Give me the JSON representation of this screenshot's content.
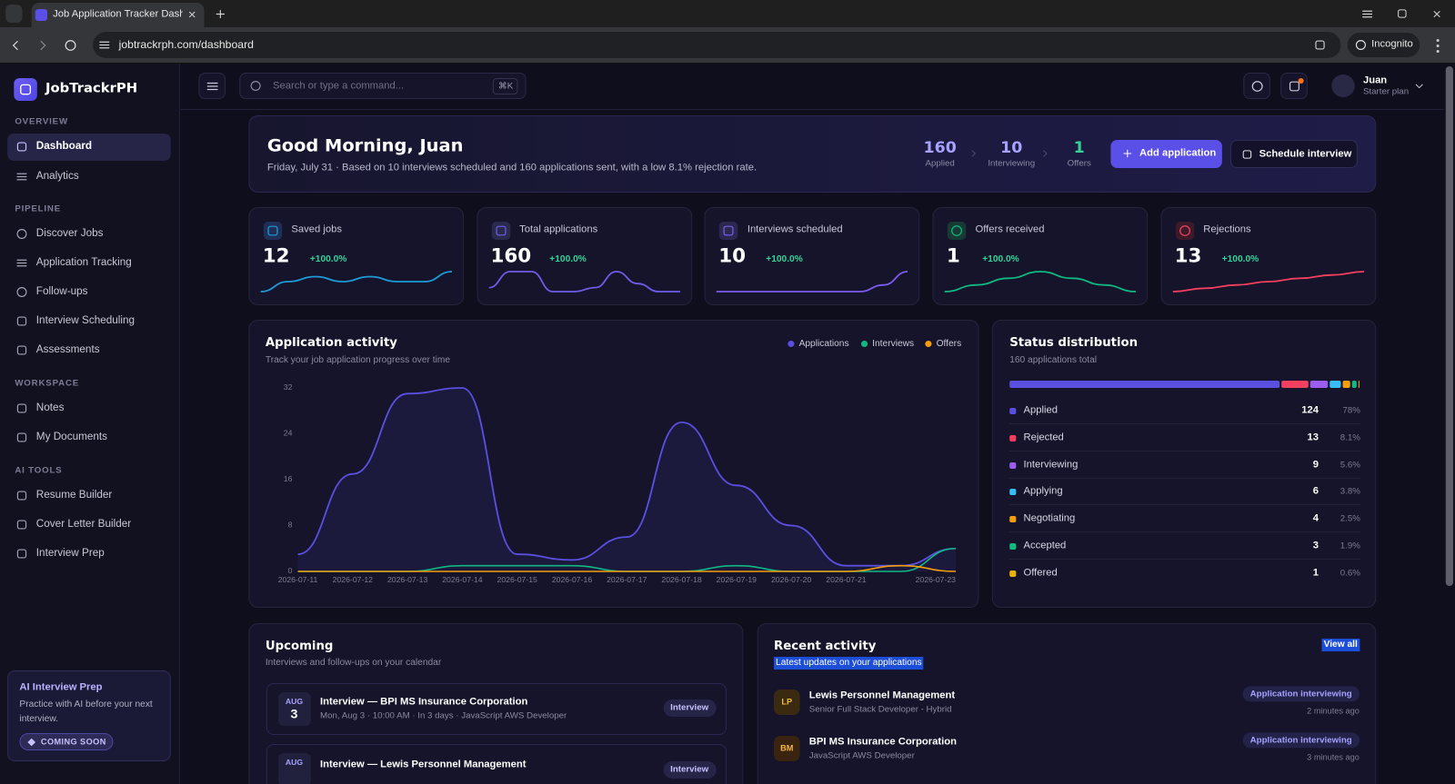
{
  "browser": {
    "tab_title": "Job Application Tracker Dashbo",
    "url": "jobtrackrph.com/dashboard",
    "mode": "Incognito"
  },
  "sidebar": {
    "brand": "JobTrackrPH",
    "sections": [
      {
        "heading": "OVERVIEW",
        "items": [
          "Dashboard",
          "Analytics"
        ]
      },
      {
        "heading": "PIPELINE",
        "items": [
          "Discover Jobs",
          "Application Tracking",
          "Follow-ups",
          "Interview Scheduling",
          "Assessments"
        ]
      },
      {
        "heading": "WORKSPACE",
        "items": [
          "Notes",
          "My Documents"
        ]
      },
      {
        "heading": "AI TOOLS",
        "items": [
          "Resume Builder",
          "Cover Letter Builder",
          "Interview Prep"
        ]
      }
    ],
    "promo": {
      "title": "AI Interview Prep",
      "text": "Practice with AI before your next interview.",
      "badge": "COMING SOON"
    }
  },
  "topbar": {
    "search_placeholder": "Search or type a command...",
    "shortcut": "⌘K",
    "user_name": "Juan",
    "user_plan": "Starter plan"
  },
  "hero": {
    "greeting": "Good Morning, Juan",
    "summary": "Friday, July 31 · Based on 10 interviews scheduled and 160 applications sent, with a low 8.1% rejection rate.",
    "stats": [
      {
        "value": 160,
        "label": "Applied"
      },
      {
        "value": 10,
        "label": "Interviewing"
      },
      {
        "value": 1,
        "label": "Offers"
      }
    ],
    "actions": [
      "Add application",
      "Schedule interview"
    ]
  },
  "stat_cards": [
    {
      "label": "Saved jobs",
      "value": 12,
      "change": "+100.0%",
      "color": "#1e9bd7",
      "trend": [
        2,
        4,
        5,
        4,
        5,
        4,
        4,
        6
      ]
    },
    {
      "label": "Total applications",
      "value": 160,
      "change": "+100.0%",
      "color": "#6d5ce8",
      "trend": [
        2,
        6,
        6,
        1,
        1,
        2,
        6,
        3,
        1,
        1
      ]
    },
    {
      "label": "Interviews scheduled",
      "value": 10,
      "change": "+100.0%",
      "color": "#7c5cf0",
      "trend": [
        0,
        0,
        0,
        0,
        0,
        0,
        0,
        1,
        3
      ]
    },
    {
      "label": "Offers received",
      "value": 1,
      "change": "+100.0%",
      "color": "#10b981",
      "trend": [
        0,
        1,
        2,
        3,
        2,
        1,
        0
      ]
    },
    {
      "label": "Rejections",
      "value": 13,
      "change": "+100.0%",
      "color": "#f43f5e",
      "trend": [
        0,
        1,
        2,
        3,
        4,
        5,
        6
      ]
    }
  ],
  "activity": {
    "type": "line",
    "title": "Application activity",
    "subtitle": "Track your job application progress over time",
    "categories": [
      "2026-07-11",
      "2026-07-12",
      "2026-07-13",
      "2026-07-14",
      "2026-07-15",
      "2026-07-16",
      "2026-07-17",
      "2026-07-18",
      "2026-07-19",
      "2026-07-20",
      "2026-07-21",
      null,
      "2026-07-23"
    ],
    "series": [
      {
        "name": "Applications",
        "color": "#5b4fe0",
        "values": [
          3,
          17,
          31,
          32,
          3,
          2,
          6,
          26,
          15,
          8,
          1,
          1,
          4
        ]
      },
      {
        "name": "Interviews",
        "color": "#10b981",
        "values": [
          0,
          0,
          0,
          1,
          1,
          1,
          0,
          0,
          1,
          0,
          0,
          0,
          4
        ]
      },
      {
        "name": "Offers",
        "color": "#f59e0b",
        "values": [
          0,
          0,
          0,
          0,
          0,
          0,
          0,
          0,
          0,
          0,
          0,
          1,
          0
        ]
      }
    ],
    "ylim": [
      0,
      32
    ],
    "yticks": [
      0,
      8,
      16,
      24,
      32
    ]
  },
  "status": {
    "title": "Status distribution",
    "subtitle": "160 applications total",
    "items": [
      {
        "name": "Applied",
        "value": 124,
        "pct": "78%",
        "color": "#5b4fe0"
      },
      {
        "name": "Rejected",
        "value": 13,
        "pct": "8.1%",
        "color": "#f43f5e"
      },
      {
        "name": "Interviewing",
        "value": 9,
        "pct": "5.6%",
        "color": "#9b5cf0"
      },
      {
        "name": "Applying",
        "value": 6,
        "pct": "3.8%",
        "color": "#38bdf8"
      },
      {
        "name": "Negotiating",
        "value": 4,
        "pct": "2.5%",
        "color": "#f59e0b"
      },
      {
        "name": "Accepted",
        "value": 3,
        "pct": "1.9%",
        "color": "#10b981"
      },
      {
        "name": "Offered",
        "value": 1,
        "pct": "0.6%",
        "color": "#eab308"
      }
    ]
  },
  "upcoming": {
    "title": "Upcoming",
    "subtitle": "Interviews and follow-ups on your calendar",
    "items": [
      {
        "month": "AUG",
        "day": "3",
        "title": "Interview — BPI MS Insurance Corporation",
        "detail": "Mon, Aug 3 · 10:00 AM · In 3 days · JavaScript AWS Developer",
        "badge": "Interview"
      },
      {
        "month": "AUG",
        "title": "Interview — Lewis Personnel Management",
        "badge": "Interview"
      }
    ]
  },
  "recent": {
    "title": "Recent activity",
    "subtitle": "Latest updates on your applications",
    "link": "View all",
    "items": [
      {
        "initials": "LP",
        "company": "Lewis Personnel Management",
        "role": "Senior Full Stack Developer - Hybrid",
        "status": "Application interviewing",
        "time": "2 minutes ago"
      },
      {
        "initials": "BM",
        "company": "BPI MS Insurance Corporation",
        "role": "JavaScript AWS Developer",
        "status": "Application interviewing",
        "time": "3 minutes ago"
      }
    ]
  }
}
